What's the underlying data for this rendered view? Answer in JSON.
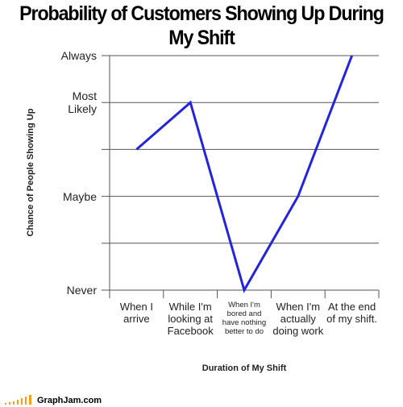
{
  "chart_data": {
    "type": "line",
    "title": "Probability of Customers Showing Up During My Shift",
    "x_label": "Duration of My Shift",
    "y_label": "Chance of People Showing Up",
    "categories": [
      "When I arrive",
      "While I'm looking at Facebook",
      "When I'm bored and have nothing better to do",
      "When I'm actually doing work",
      "At the end of my shift."
    ],
    "values": [
      3,
      4,
      0,
      2,
      5
    ],
    "color": "#2424d8",
    "ylim": [
      0,
      5
    ],
    "yticks": [
      {
        "value": 0,
        "label": "Never"
      },
      {
        "value": 1,
        "label": null
      },
      {
        "value": 2,
        "label": "Maybe"
      },
      {
        "value": 3,
        "label": null
      },
      {
        "value": 4,
        "label": "Most Likely"
      },
      {
        "value": 5,
        "label": "Always"
      }
    ],
    "grid": true
  },
  "footer": "GraphJam.com"
}
